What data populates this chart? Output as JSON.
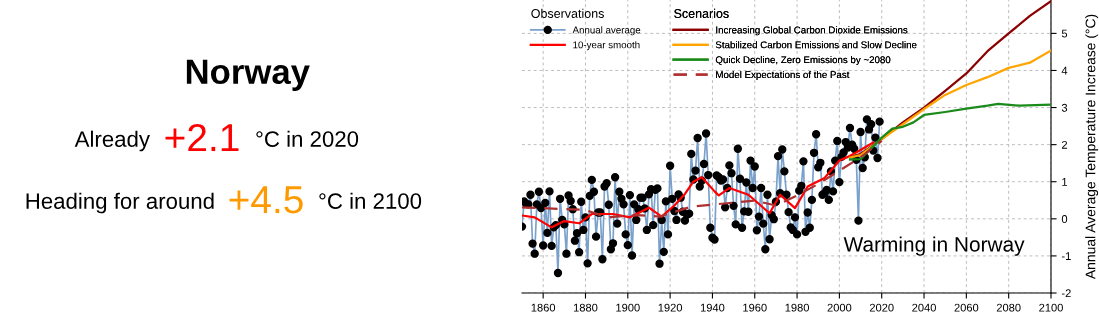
{
  "chart_data": [
    {
      "type": "other",
      "title": "Norway",
      "annotations": [
        "Already",
        "+2.1",
        "°C in 2020",
        "Heading for around",
        "+4.5",
        "°C in 2100"
      ]
    },
    {
      "type": "line",
      "title": "Warming in Norway",
      "ylabel": "Annual Average Temperature Increase (°C)",
      "legend_title": [
        "Observations",
        "Scenarios"
      ],
      "legend": "top left",
      "grid": true,
      "xlim": [
        1850,
        2100
      ],
      "xticks": [
        1860,
        1880,
        1900,
        1920,
        1940,
        1960,
        1980,
        2000,
        2020,
        2040,
        2060,
        2080,
        2100
      ],
      "ylim": [
        -2,
        5.9
      ],
      "yticks": [
        -2,
        -1,
        0,
        1,
        2,
        3,
        4,
        5
      ],
      "series": [
        {
          "name": "Annual average",
          "color": "#7aa0cc",
          "marker": "circle",
          "x": [
            1850,
            1851,
            1852,
            1853,
            1854,
            1855,
            1856,
            1857,
            1858,
            1859,
            1860,
            1861,
            1862,
            1863,
            1864,
            1865,
            1866,
            1867,
            1868,
            1869,
            1870,
            1871,
            1872,
            1873,
            1874,
            1875,
            1876,
            1877,
            1878,
            1879,
            1880,
            1881,
            1882,
            1883,
            1884,
            1885,
            1886,
            1887,
            1888,
            1889,
            1890,
            1891,
            1892,
            1893,
            1894,
            1895,
            1896,
            1897,
            1898,
            1899,
            1900,
            1901,
            1902,
            1903,
            1904,
            1905,
            1906,
            1907,
            1908,
            1909,
            1910,
            1911,
            1912,
            1913,
            1914,
            1915,
            1916,
            1917,
            1918,
            1919,
            1920,
            1921,
            1922,
            1923,
            1924,
            1925,
            1926,
            1927,
            1928,
            1929,
            1930,
            1931,
            1932,
            1933,
            1934,
            1935,
            1936,
            1937,
            1938,
            1939,
            1940,
            1941,
            1942,
            1943,
            1944,
            1945,
            1946,
            1947,
            1948,
            1949,
            1950,
            1951,
            1952,
            1953,
            1954,
            1955,
            1956,
            1957,
            1958,
            1959,
            1960,
            1961,
            1962,
            1963,
            1964,
            1965,
            1966,
            1967,
            1968,
            1969,
            1970,
            1971,
            1972,
            1973,
            1974,
            1975,
            1976,
            1977,
            1978,
            1979,
            1980,
            1981,
            1982,
            1983,
            1984,
            1985,
            1986,
            1987,
            1988,
            1989,
            1990,
            1991,
            1992,
            1993,
            1994,
            1995,
            1996,
            1997,
            1998,
            1999,
            2000,
            2001,
            2002,
            2003,
            2004,
            2005,
            2006,
            2007,
            2008,
            2009,
            2010,
            2011,
            2012,
            2013,
            2014,
            2015,
            2016,
            2017,
            2018,
            2019
          ],
          "values": [
            -0.21,
            0.47,
            0.4,
            0.39,
            0.65,
            -0.67,
            -0.94,
            0.39,
            0.73,
            0.29,
            -0.72,
            0.43,
            -0.38,
            0.74,
            -0.73,
            -0.23,
            -0.17,
            -1.46,
            0.54,
            -0.03,
            -0.15,
            -0.94,
            0.63,
            0.48,
            0.26,
            -0.59,
            -0.39,
            -0.9,
            0.46,
            -0.3,
            0.04,
            -1.2,
            0.62,
            1.05,
            0.73,
            -0.48,
            0.17,
            0.17,
            -1.09,
            0.87,
            0.96,
            0.38,
            -0.82,
            -0.66,
            1.12,
            -0.13,
            0.73,
            0.54,
            0.39,
            -0.42,
            -0.71,
            0.64,
            -0.99,
            0.39,
            -0.03,
            0.26,
            0.57,
            0.57,
            0.28,
            -0.3,
            0.66,
            0.8,
            -0.17,
            0.78,
            0.82,
            -1.21,
            -0.03,
            -0.89,
            0.47,
            -0.42,
            1.43,
            0.54,
            0.21,
            -0.03,
            0.66,
            0.57,
            0.19,
            -0.05,
            0.11,
            0.14,
            1.75,
            1.06,
            1.3,
            2.18,
            0.87,
            1.03,
            1.48,
            2.3,
            1.18,
            -0.24,
            -0.51,
            -0.56,
            1.17,
            1.12,
            1.03,
            1.06,
            0.31,
            0.83,
            1.44,
            1.23,
            0.35,
            -0.15,
            1.89,
            1.08,
            -0.24,
            0.2,
            0.98,
            0.19,
            1.57,
            0.83,
            1.41,
            -0.31,
            0.06,
            0.83,
            -0.13,
            -0.82,
            0.65,
            -0.55,
            0.1,
            -0.01,
            0.46,
            1.69,
            0.69,
            1.87,
            1.28,
            0.65,
            0.18,
            -0.23,
            -0.3,
            0.04,
            -0.42,
            0.76,
            0.89,
            1.55,
            -0.35,
            0.17,
            -0.24,
            0.51,
            1.78,
            2.28,
            1.39,
            1.51,
            0.65,
            0.69,
            0.78,
            0.51,
            1.28,
            0.74,
            1.57,
            2.1,
            0.99,
            1.67,
            1.79,
            2.07,
            1.92,
            2.45,
            2.0,
            1.89,
            1.59,
            -0.05,
            2.34,
            1.37,
            1.66,
            2.68,
            2.41,
            2.55,
            1.84,
            2.19,
            1.64,
            2.62
          ]
        },
        {
          "name": "10-year smooth",
          "color": "#ff0000",
          "x": [
            1850,
            1856,
            1864,
            1870,
            1877,
            1883,
            1893,
            1901,
            1910,
            1916,
            1922,
            1927,
            1931,
            1935,
            1941,
            1943,
            1948,
            1957,
            1967,
            1972,
            1979,
            1985,
            1993,
            2000,
            2004,
            2009,
            2016
          ],
          "values": [
            0.09,
            0.04,
            -0.23,
            -0.06,
            -0.12,
            0.13,
            0.13,
            0.04,
            0.3,
            0.06,
            0.36,
            0.67,
            1.0,
            1.12,
            0.74,
            0.63,
            0.83,
            0.65,
            0.15,
            0.65,
            0.29,
            0.87,
            1.1,
            1.57,
            1.67,
            1.82,
            2.06
          ]
        },
        {
          "name": "Increasing Global Carbon Dioxide Emissions",
          "color": "#8b0000",
          "x": [
            2005,
            2010,
            2020,
            2030,
            2040,
            2050,
            2060,
            2070,
            2080,
            2090,
            2100
          ],
          "values": [
            1.65,
            1.75,
            2.15,
            2.6,
            3.0,
            3.45,
            3.92,
            4.52,
            5.0,
            5.47,
            5.87
          ]
        },
        {
          "name": "Stabilized Carbon Emissions and Slow Decline",
          "color": "#ffa500",
          "x": [
            2005,
            2010,
            2020,
            2030,
            2040,
            2050,
            2060,
            2070,
            2080,
            2090,
            2100
          ],
          "values": [
            1.65,
            1.72,
            2.15,
            2.55,
            2.96,
            3.34,
            3.61,
            3.82,
            4.07,
            4.21,
            4.54
          ]
        },
        {
          "name": "Quick Decline, Zero Emissions by ~2080",
          "color": "#1a8a1a",
          "x": [
            2005,
            2010,
            2020,
            2025,
            2030,
            2035,
            2040,
            2050,
            2060,
            2070,
            2075,
            2085,
            2100
          ],
          "values": [
            1.6,
            1.61,
            2.19,
            2.43,
            2.48,
            2.6,
            2.8,
            2.88,
            2.97,
            3.05,
            3.1,
            3.05,
            3.08
          ]
        },
        {
          "name": "Model Expectations of the Past",
          "color": "#b03030",
          "line_style": "dashed",
          "x": [
            1850,
            1880,
            1890,
            1905,
            1915,
            1930,
            1960,
            1970,
            1980,
            1990,
            2000,
            2010,
            2020
          ],
          "values": [
            0.31,
            0.24,
            0.04,
            0.1,
            0.06,
            0.33,
            0.49,
            0.36,
            0.63,
            0.94,
            1.3,
            1.66,
            2.1
          ]
        }
      ]
    }
  ]
}
